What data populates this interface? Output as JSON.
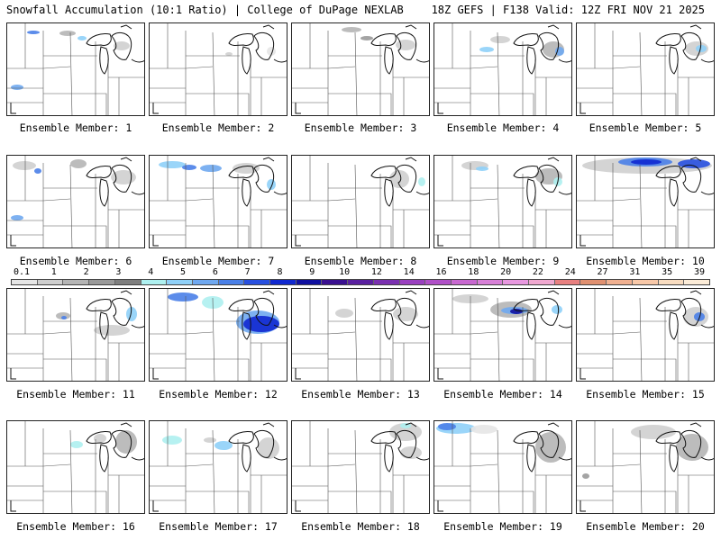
{
  "header": {
    "title": "Snowfall Accumulation (10:1 Ratio) | College of DuPage NEXLAB",
    "run_info": "18Z GEFS | F138 Valid: 12Z FRI NOV 21 2025"
  },
  "legend": {
    "labels": [
      "0.1",
      "1",
      "2",
      "3",
      "4",
      "5",
      "6",
      "7",
      "8",
      "9",
      "10",
      "12",
      "14",
      "16",
      "18",
      "20",
      "22",
      "24",
      "27",
      "31",
      "35",
      "39"
    ],
    "colors": [
      "#e6e6e6",
      "#cfcfcf",
      "#b5b5b5",
      "#9a9a9a",
      "#7f7f7f",
      "#aef0f0",
      "#8fd0f8",
      "#6fa8f0",
      "#4a80e8",
      "#2850e0",
      "#1028d0",
      "#1010a0",
      "#3a1090",
      "#5a20a0",
      "#7a30b0",
      "#9a40c0",
      "#b050c8",
      "#c868d0",
      "#d880d8",
      "#e898e0",
      "#f0a8d0",
      "#e88080",
      "#e09070",
      "#f0b090",
      "#f8c8a8",
      "#f8dcc0",
      "#fcecd8"
    ]
  },
  "panels": [
    {
      "label": "Ensemble Member: 1",
      "snow": [
        {
          "x": 22,
          "y": 8,
          "w": 14,
          "h": 4,
          "c": "#4a80e8"
        },
        {
          "x": 58,
          "y": 8,
          "w": 18,
          "h": 6,
          "c": "#b5b5b5"
        },
        {
          "x": 78,
          "y": 14,
          "w": 10,
          "h": 5,
          "c": "#8fd0f8"
        },
        {
          "x": 118,
          "y": 20,
          "w": 18,
          "h": 10,
          "c": "#cfcfcf"
        },
        {
          "x": 4,
          "y": 68,
          "w": 14,
          "h": 6,
          "c": "#6fa8f0"
        }
      ]
    },
    {
      "label": "Ensemble Member: 2",
      "snow": [
        {
          "x": 84,
          "y": 32,
          "w": 8,
          "h": 4,
          "c": "#cfcfcf"
        },
        {
          "x": 130,
          "y": 26,
          "w": 10,
          "h": 10,
          "c": "#e6e6e6"
        }
      ]
    },
    {
      "label": "Ensemble Member: 3",
      "snow": [
        {
          "x": 55,
          "y": 4,
          "w": 22,
          "h": 6,
          "c": "#b5b5b5"
        },
        {
          "x": 76,
          "y": 14,
          "w": 14,
          "h": 5,
          "c": "#9a9a9a"
        },
        {
          "x": 115,
          "y": 18,
          "w": 22,
          "h": 12,
          "c": "#cfcfcf"
        }
      ]
    },
    {
      "label": "Ensemble Member: 4",
      "snow": [
        {
          "x": 50,
          "y": 26,
          "w": 16,
          "h": 6,
          "c": "#8fd0f8"
        },
        {
          "x": 62,
          "y": 14,
          "w": 22,
          "h": 8,
          "c": "#cfcfcf"
        },
        {
          "x": 120,
          "y": 20,
          "w": 24,
          "h": 18,
          "c": "#b5b5b5"
        },
        {
          "x": 134,
          "y": 26,
          "w": 10,
          "h": 10,
          "c": "#6fa8f0"
        }
      ]
    },
    {
      "label": "Ensemble Member: 5",
      "snow": [
        {
          "x": 120,
          "y": 20,
          "w": 26,
          "h": 16,
          "c": "#cfcfcf"
        },
        {
          "x": 132,
          "y": 24,
          "w": 12,
          "h": 8,
          "c": "#8fd0f8"
        }
      ]
    },
    {
      "label": "Ensemble Member: 6",
      "snow": [
        {
          "x": 6,
          "y": 6,
          "w": 26,
          "h": 10,
          "c": "#cfcfcf"
        },
        {
          "x": 30,
          "y": 14,
          "w": 8,
          "h": 6,
          "c": "#4a80e8"
        },
        {
          "x": 70,
          "y": 4,
          "w": 18,
          "h": 10,
          "c": "#b5b5b5"
        },
        {
          "x": 115,
          "y": 16,
          "w": 28,
          "h": 16,
          "c": "#cfcfcf"
        },
        {
          "x": 4,
          "y": 66,
          "w": 14,
          "h": 6,
          "c": "#6fa8f0"
        }
      ]
    },
    {
      "label": "Ensemble Member: 7",
      "snow": [
        {
          "x": 10,
          "y": 6,
          "w": 30,
          "h": 8,
          "c": "#8fd0f8"
        },
        {
          "x": 36,
          "y": 10,
          "w": 16,
          "h": 6,
          "c": "#4a80e8"
        },
        {
          "x": 56,
          "y": 10,
          "w": 24,
          "h": 8,
          "c": "#6fa8f0"
        },
        {
          "x": 92,
          "y": 8,
          "w": 30,
          "h": 12,
          "c": "#cfcfcf"
        },
        {
          "x": 130,
          "y": 26,
          "w": 10,
          "h": 12,
          "c": "#8fd0f8"
        }
      ]
    },
    {
      "label": "Ensemble Member: 8",
      "snow": [
        {
          "x": 108,
          "y": 16,
          "w": 22,
          "h": 20,
          "c": "#cfcfcf"
        },
        {
          "x": 140,
          "y": 24,
          "w": 8,
          "h": 10,
          "c": "#aef0f0"
        }
      ]
    },
    {
      "label": "Ensemble Member: 9",
      "snow": [
        {
          "x": 30,
          "y": 6,
          "w": 30,
          "h": 10,
          "c": "#cfcfcf"
        },
        {
          "x": 46,
          "y": 12,
          "w": 14,
          "h": 5,
          "c": "#8fd0f8"
        },
        {
          "x": 112,
          "y": 14,
          "w": 30,
          "h": 18,
          "c": "#b5b5b5"
        },
        {
          "x": 132,
          "y": 24,
          "w": 10,
          "h": 10,
          "c": "#aef0f0"
        }
      ]
    },
    {
      "label": "Ensemble Member: 10",
      "snow": [
        {
          "x": 6,
          "y": 2,
          "w": 144,
          "h": 18,
          "c": "#cfcfcf"
        },
        {
          "x": 46,
          "y": 2,
          "w": 60,
          "h": 10,
          "c": "#4a80e8"
        },
        {
          "x": 60,
          "y": 4,
          "w": 34,
          "h": 6,
          "c": "#1028d0"
        },
        {
          "x": 112,
          "y": 4,
          "w": 36,
          "h": 10,
          "c": "#2850e0"
        }
      ]
    },
    {
      "label": "Ensemble Member: 11",
      "snow": [
        {
          "x": 54,
          "y": 26,
          "w": 16,
          "h": 8,
          "c": "#b5b5b5"
        },
        {
          "x": 60,
          "y": 30,
          "w": 6,
          "h": 4,
          "c": "#4a80e8"
        },
        {
          "x": 96,
          "y": 40,
          "w": 40,
          "h": 12,
          "c": "#cfcfcf"
        },
        {
          "x": 132,
          "y": 20,
          "w": 12,
          "h": 16,
          "c": "#8fd0f8"
        }
      ]
    },
    {
      "label": "Ensemble Member: 12",
      "snow": [
        {
          "x": 20,
          "y": 4,
          "w": 34,
          "h": 10,
          "c": "#4a80e8"
        },
        {
          "x": 58,
          "y": 8,
          "w": 24,
          "h": 14,
          "c": "#aef0f0"
        },
        {
          "x": 96,
          "y": 24,
          "w": 48,
          "h": 26,
          "c": "#6fa8f0"
        },
        {
          "x": 104,
          "y": 30,
          "w": 40,
          "h": 18,
          "c": "#1028d0"
        }
      ]
    },
    {
      "label": "Ensemble Member: 13",
      "snow": [
        {
          "x": 48,
          "y": 22,
          "w": 20,
          "h": 10,
          "c": "#cfcfcf"
        },
        {
          "x": 112,
          "y": 20,
          "w": 28,
          "h": 16,
          "c": "#cfcfcf"
        }
      ]
    },
    {
      "label": "Ensemble Member: 14",
      "snow": [
        {
          "x": 20,
          "y": 6,
          "w": 40,
          "h": 10,
          "c": "#cfcfcf"
        },
        {
          "x": 62,
          "y": 14,
          "w": 46,
          "h": 18,
          "c": "#b5b5b5"
        },
        {
          "x": 74,
          "y": 20,
          "w": 30,
          "h": 8,
          "c": "#6fa8f0"
        },
        {
          "x": 84,
          "y": 22,
          "w": 14,
          "h": 6,
          "c": "#1010a0"
        },
        {
          "x": 130,
          "y": 18,
          "w": 12,
          "h": 10,
          "c": "#8fd0f8"
        }
      ]
    },
    {
      "label": "Ensemble Member: 15",
      "snow": [
        {
          "x": 118,
          "y": 20,
          "w": 28,
          "h": 22,
          "c": "#cfcfcf"
        },
        {
          "x": 130,
          "y": 26,
          "w": 12,
          "h": 10,
          "c": "#4a80e8"
        }
      ]
    },
    {
      "label": "Ensemble Member: 16",
      "snow": [
        {
          "x": 70,
          "y": 22,
          "w": 14,
          "h": 8,
          "c": "#aef0f0"
        },
        {
          "x": 96,
          "y": 14,
          "w": 14,
          "h": 10,
          "c": "#cfcfcf"
        },
        {
          "x": 120,
          "y": 10,
          "w": 24,
          "h": 26,
          "c": "#b5b5b5"
        }
      ]
    },
    {
      "label": "Ensemble Member: 17",
      "snow": [
        {
          "x": 14,
          "y": 16,
          "w": 22,
          "h": 10,
          "c": "#aef0f0"
        },
        {
          "x": 72,
          "y": 22,
          "w": 20,
          "h": 10,
          "c": "#8fd0f8"
        },
        {
          "x": 60,
          "y": 18,
          "w": 14,
          "h": 6,
          "c": "#cfcfcf"
        },
        {
          "x": 120,
          "y": 18,
          "w": 24,
          "h": 24,
          "c": "#cfcfcf"
        }
      ]
    },
    {
      "label": "Ensemble Member: 18",
      "snow": [
        {
          "x": 108,
          "y": 2,
          "w": 36,
          "h": 20,
          "c": "#cfcfcf"
        },
        {
          "x": 120,
          "y": 2,
          "w": 12,
          "h": 6,
          "c": "#aef0f0"
        },
        {
          "x": 120,
          "y": 28,
          "w": 24,
          "h": 14,
          "c": "#cfcfcf"
        }
      ]
    },
    {
      "label": "Ensemble Member: 19",
      "snow": [
        {
          "x": 2,
          "y": 2,
          "w": 44,
          "h": 12,
          "c": "#8fd0f8"
        },
        {
          "x": 4,
          "y": 2,
          "w": 20,
          "h": 8,
          "c": "#4a80e8"
        },
        {
          "x": 40,
          "y": 4,
          "w": 30,
          "h": 10,
          "c": "#e6e6e6"
        },
        {
          "x": 112,
          "y": 12,
          "w": 34,
          "h": 34,
          "c": "#b5b5b5"
        }
      ]
    },
    {
      "label": "Ensemble Member: 20",
      "snow": [
        {
          "x": 60,
          "y": 4,
          "w": 50,
          "h": 16,
          "c": "#cfcfcf"
        },
        {
          "x": 110,
          "y": 14,
          "w": 36,
          "h": 30,
          "c": "#b5b5b5"
        },
        {
          "x": 6,
          "y": 58,
          "w": 8,
          "h": 6,
          "c": "#9a9a9a"
        }
      ]
    }
  ]
}
